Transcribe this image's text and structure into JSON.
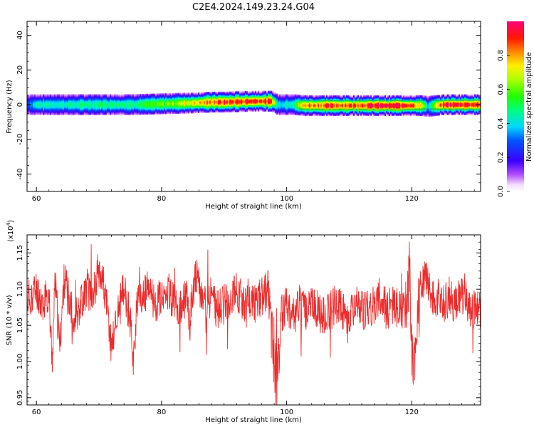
{
  "figure_title": "C2E4.2024.149.23.24.G04",
  "chart_data": [
    {
      "type": "heatmap",
      "xlabel": "Height of straight line (km)",
      "ylabel": "Frequency (Hz)",
      "xlim": [
        58.5,
        131
      ],
      "ylim": [
        -50,
        48
      ],
      "xticks": [
        60,
        80,
        100,
        120
      ],
      "yticks": [
        -40,
        -20,
        0,
        20,
        40
      ],
      "colorbar": {
        "label": "Normalized spectral amplitude",
        "ticks": [
          "0.0",
          "0.2",
          "0.4",
          "0.6",
          "0.8"
        ],
        "range": [
          0,
          1
        ]
      },
      "ridge_profile": {
        "x": [
          58.5,
          60,
          65,
          70,
          75,
          80,
          85,
          88,
          90,
          95,
          97.5,
          98.5,
          101,
          103,
          110,
          115,
          120,
          121.5,
          122.5,
          125,
          131
        ],
        "center_hz": [
          0,
          0,
          0,
          0,
          0,
          0.5,
          1,
          1.5,
          1.5,
          2,
          2,
          0,
          0,
          -0.5,
          -0.5,
          -0.5,
          -0.5,
          -0.5,
          -1,
          0,
          0
        ],
        "peak_amplitude": [
          0.3,
          0.45,
          0.45,
          0.5,
          0.5,
          0.6,
          0.75,
          0.85,
          0.9,
          0.95,
          0.9,
          0.4,
          0.5,
          0.85,
          0.9,
          0.95,
          0.95,
          0.7,
          0.4,
          0.95,
          0.95
        ]
      }
    },
    {
      "type": "line",
      "xlabel": "Height of straight line (km)",
      "ylabel": "SNR (10 * v/v)",
      "y_multiplier": "(x10",
      "y_multiplier_exp": "4",
      "y_multiplier_close": ")",
      "xlim": [
        58.5,
        131
      ],
      "ylim": [
        0.94,
        1.175
      ],
      "xticks": [
        60,
        80,
        100,
        120
      ],
      "yticks": [
        0.95,
        1.0,
        1.05,
        1.1,
        1.15
      ],
      "ytick_labels": [
        "0.95",
        "1.00",
        "1.05",
        "1.10",
        "1.15"
      ],
      "color": "#ee2b2b",
      "series": [
        {
          "x": [
            58.5,
            60,
            61,
            62,
            62.5,
            63,
            63.7,
            64.5,
            65,
            66,
            67,
            68,
            69,
            70,
            70.5,
            71,
            72,
            73,
            74,
            75,
            75.5,
            76,
            77,
            78,
            79,
            80,
            81,
            82,
            83,
            84,
            84.5,
            85,
            85.5,
            86,
            87,
            88,
            89,
            90,
            91,
            92,
            93,
            94,
            95,
            96,
            97,
            97.5,
            98,
            98.5,
            99,
            100,
            101,
            102,
            103,
            104,
            105,
            106,
            107,
            108,
            109,
            110,
            111,
            112,
            113,
            114,
            115,
            116,
            117,
            118,
            119,
            119.7,
            120,
            120.5,
            121,
            122,
            123,
            124,
            125,
            126,
            127,
            128,
            129,
            130,
            131
          ],
          "y": [
            1.085,
            1.1,
            1.08,
            1.09,
            1.0,
            1.11,
            1.02,
            1.12,
            1.09,
            1.06,
            1.08,
            1.1,
            1.09,
            1.13,
            1.12,
            1.09,
            1.02,
            1.07,
            1.1,
            1.06,
            1.0,
            1.07,
            1.09,
            1.1,
            1.08,
            1.09,
            1.1,
            1.08,
            1.07,
            1.09,
            1.05,
            1.1,
            1.12,
            1.1,
            1.08,
            1.09,
            1.07,
            1.08,
            1.09,
            1.1,
            1.08,
            1.09,
            1.08,
            1.09,
            1.1,
            1.06,
            1.0,
            0.97,
            1.06,
            1.08,
            1.06,
            1.08,
            1.07,
            1.08,
            1.07,
            1.06,
            1.07,
            1.08,
            1.07,
            1.06,
            1.08,
            1.07,
            1.07,
            1.08,
            1.09,
            1.07,
            1.08,
            1.07,
            1.07,
            1.13,
            1.02,
            1.0,
            1.07,
            1.12,
            1.09,
            1.09,
            1.08,
            1.09,
            1.08,
            1.09,
            1.08,
            1.07,
            1.07
          ]
        }
      ]
    }
  ]
}
